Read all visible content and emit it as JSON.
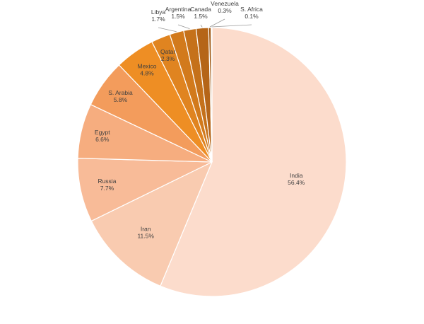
{
  "chart_data": {
    "type": "pie",
    "title": "",
    "legend": "none",
    "slices": [
      {
        "label": "India",
        "value": 56.4,
        "display": "56.4%",
        "color": "#fcdccc"
      },
      {
        "label": "Iran",
        "value": 11.5,
        "display": "11.5%",
        "color": "#f9cbb0"
      },
      {
        "label": "Russia",
        "value": 7.7,
        "display": "7.7%",
        "color": "#f8bb98"
      },
      {
        "label": "Egypt",
        "value": 6.6,
        "display": "6.6%",
        "color": "#f6ad7f"
      },
      {
        "label": "S. Arabia",
        "value": 5.8,
        "display": "5.8%",
        "color": "#f39c5c"
      },
      {
        "label": "Mexico",
        "value": 4.8,
        "display": "4.8%",
        "color": "#ee8e24"
      },
      {
        "label": "Qatar",
        "value": 2.3,
        "display": "2.3%",
        "color": "#e08420"
      },
      {
        "label": "Libya",
        "value": 1.7,
        "display": "1.7%",
        "color": "#d27a1c"
      },
      {
        "label": "Argentina",
        "value": 1.5,
        "display": "1.5%",
        "color": "#c5711a"
      },
      {
        "label": "Canada",
        "value": 1.5,
        "display": "1.5%",
        "color": "#b56518"
      },
      {
        "label": "Venezuela",
        "value": 0.3,
        "display": "0.3%",
        "color": "#a05a16"
      },
      {
        "label": "S. Africa",
        "value": 0.1,
        "display": "0.1%",
        "color": "#8e5012"
      }
    ]
  }
}
